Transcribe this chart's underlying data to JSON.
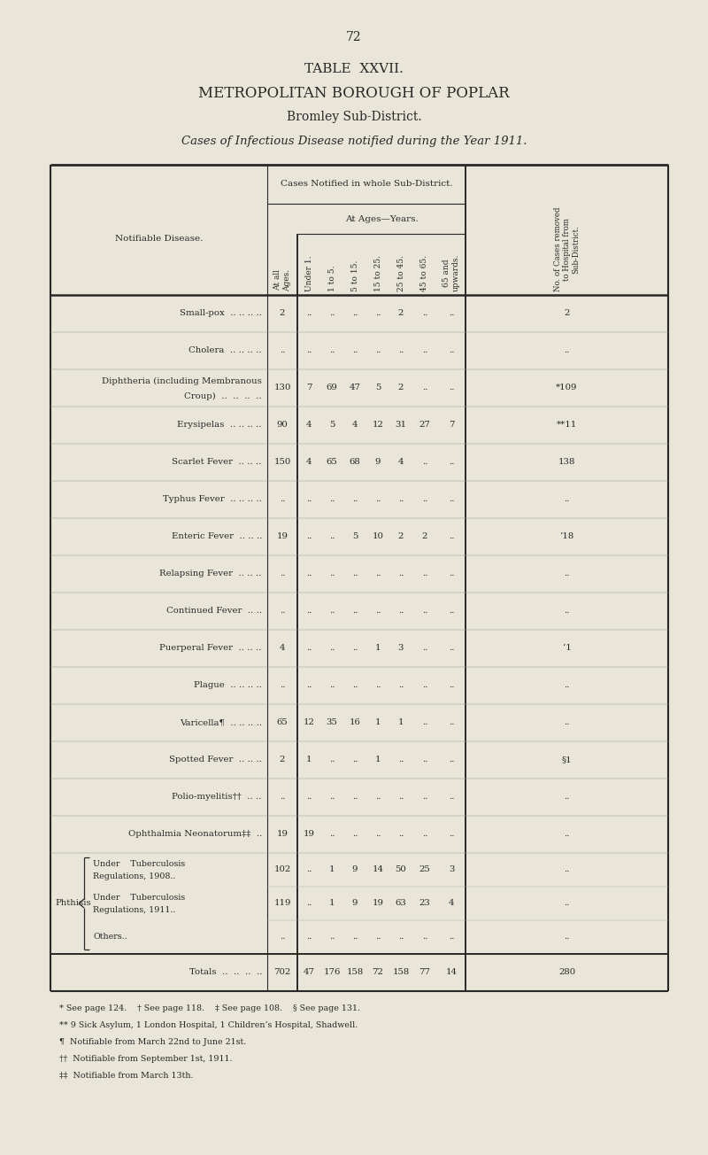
{
  "page_number": "72",
  "title1": "TABLE  XXVII.",
  "title2": "METROPOLITAN BOROUGH OF POPLAR",
  "title3": "Bromley Sub-District.",
  "title4": "Cases of Infectious Disease notified during the Year 1911.",
  "bg_color": "#e9e5d8",
  "rows": [
    {
      "disease": "Small-pox",
      "dots": ".. .. .. ..",
      "all": "2",
      "u1": "..",
      "1to5": "..",
      "5to15": "..",
      "15to25": "..",
      "25to45": "2",
      "45to65": "..",
      "65up": "..",
      "hosp": "2"
    },
    {
      "disease": "Cholera",
      "dots": ".. .. .. ..",
      "all": "..",
      "u1": "..",
      "1to5": "..",
      "5to15": "..",
      "15to25": "..",
      "25to45": "..",
      "45to65": "..",
      "65up": "..",
      "hosp": ".."
    },
    {
      "disease": "Diphtheria (including Membranous",
      "sub": "Croup)  ..  ..  ..  ..",
      "all": "130",
      "u1": "7",
      "1to5": "69",
      "5to15": "47",
      "15to25": "5",
      "25to45": "2",
      "45to65": "..",
      "65up": "..",
      "hosp": "*109"
    },
    {
      "disease": "Erysipelas",
      "dots": ".. .. .. ..",
      "all": "90",
      "u1": "4",
      "1to5": "5",
      "5to15": "4",
      "15to25": "12",
      "25to45": "31",
      "45to65": "27",
      "65up": "7",
      "hosp": "**11"
    },
    {
      "disease": "Scarlet Fever",
      "dots": ".. .. ..",
      "all": "150",
      "u1": "4",
      "1to5": "65",
      "5to15": "68",
      "15to25": "9",
      "25to45": "4",
      "45to65": "..",
      "65up": "..",
      "hosp": "138"
    },
    {
      "disease": "Typhus Fever",
      "dots": ".. .. .. ..",
      "all": "..",
      "u1": "..",
      "1to5": "..",
      "5to15": "..",
      "15to25": "..",
      "25to45": "..",
      "45to65": "..",
      "65up": "..",
      "hosp": ".."
    },
    {
      "disease": "Enteric Fever",
      "dots": ".. .. ..",
      "all": "19",
      "u1": "..",
      "1to5": "..",
      "5to15": "5",
      "15to25": "10",
      "25to45": "2",
      "45to65": "2",
      "65up": "..",
      "hosp": "’18"
    },
    {
      "disease": "Relapsing Fever",
      "dots": ".. .. ..",
      "all": "..",
      "u1": "..",
      "1to5": "..",
      "5to15": "..",
      "15to25": "..",
      "25to45": "..",
      "45to65": "..",
      "65up": "..",
      "hosp": ".."
    },
    {
      "disease": "Continued Fever",
      "dots": ".. ..",
      "all": "..",
      "u1": "..",
      "1to5": "..",
      "5to15": "..",
      "15to25": "..",
      "25to45": "..",
      "45to65": "..",
      "65up": "..",
      "hosp": ".."
    },
    {
      "disease": "Puerperal Fever",
      "dots": ".. .. ..",
      "all": "4",
      "u1": "..",
      "1to5": "..",
      "5to15": "..",
      "15to25": "1",
      "25to45": "3",
      "45to65": "..",
      "65up": "..",
      "hosp": "‘1"
    },
    {
      "disease": "Plague",
      "dots": ".. .. .. ..",
      "all": "..",
      "u1": "..",
      "1to5": "..",
      "5to15": "..",
      "15to25": "..",
      "25to45": "..",
      "45to65": "..",
      "65up": "..",
      "hosp": ".."
    },
    {
      "disease": "Varicella¶",
      "dots": ".. .. .. ..",
      "all": "65",
      "u1": "12",
      "1to5": "35",
      "5to15": "16",
      "15to25": "1",
      "25to45": "1",
      "45to65": "..",
      "65up": "..",
      "hosp": ".."
    },
    {
      "disease": "Spotted Fever",
      "dots": ".. .. ..",
      "all": "2",
      "u1": "1",
      "1to5": "..",
      "5to15": "..",
      "15to25": "1",
      "25to45": "..",
      "45to65": "..",
      "65up": "..",
      "hosp": "§1"
    },
    {
      "disease": "Polio-myelitis††",
      "dots": ".. ..",
      "all": "..",
      "u1": "..",
      "1to5": "..",
      "5to15": "..",
      "15to25": "..",
      "25to45": "..",
      "45to65": "..",
      "65up": "..",
      "hosp": ".."
    },
    {
      "disease": "Ophthalmia Neonatorum‡‡",
      "dots": "..",
      "all": "19",
      "u1": "19",
      "1to5": "..",
      "5to15": "..",
      "15to25": "..",
      "25to45": "..",
      "45to65": "..",
      "65up": "..",
      "hosp": ".."
    }
  ],
  "phthisis": [
    {
      "sub": "Under    Tuberculosis",
      "sub2": "Regulations, 1908..",
      "all": "102",
      "u1": "..",
      "1to5": "1",
      "5to15": "9",
      "15to25": "14",
      "25to45": "50",
      "45to65": "25",
      "65up": "3",
      "hosp": ".."
    },
    {
      "sub": "Under    Tuberculosis",
      "sub2": "Regulations, 1911..",
      "all": "119",
      "u1": "..",
      "1to5": "1",
      "5to15": "9",
      "15to25": "19",
      "25to45": "63",
      "45to65": "23",
      "65up": "4",
      "hosp": ".."
    },
    {
      "sub": "Others..",
      "sub2": ".. ..",
      "all": "..",
      "u1": "..",
      "1to5": "..",
      "5to15": "..",
      "15to25": "..",
      "25to45": "..",
      "45to65": "..",
      "65up": "..",
      "hosp": ".."
    }
  ],
  "totals": {
    "all": "702",
    "u1": "47",
    "1to5": "176",
    "5to15": "158",
    "15to25": "72",
    "25to45": "158",
    "45to65": "77",
    "65up": "14",
    "hosp": "280"
  },
  "footnotes": [
    "* See page 124.    † See page 118.    ‡ See page 108.    § See page 131.",
    "** 9 Sick Asylum, 1 London Hospital, 1 Children’s Hospital, Shadwell.",
    "¶  Notifiable from March 22nd to June 21st.",
    "††  Notifiable from September 1st, 1911.",
    "‡‡  Notifiable from March 13th."
  ]
}
